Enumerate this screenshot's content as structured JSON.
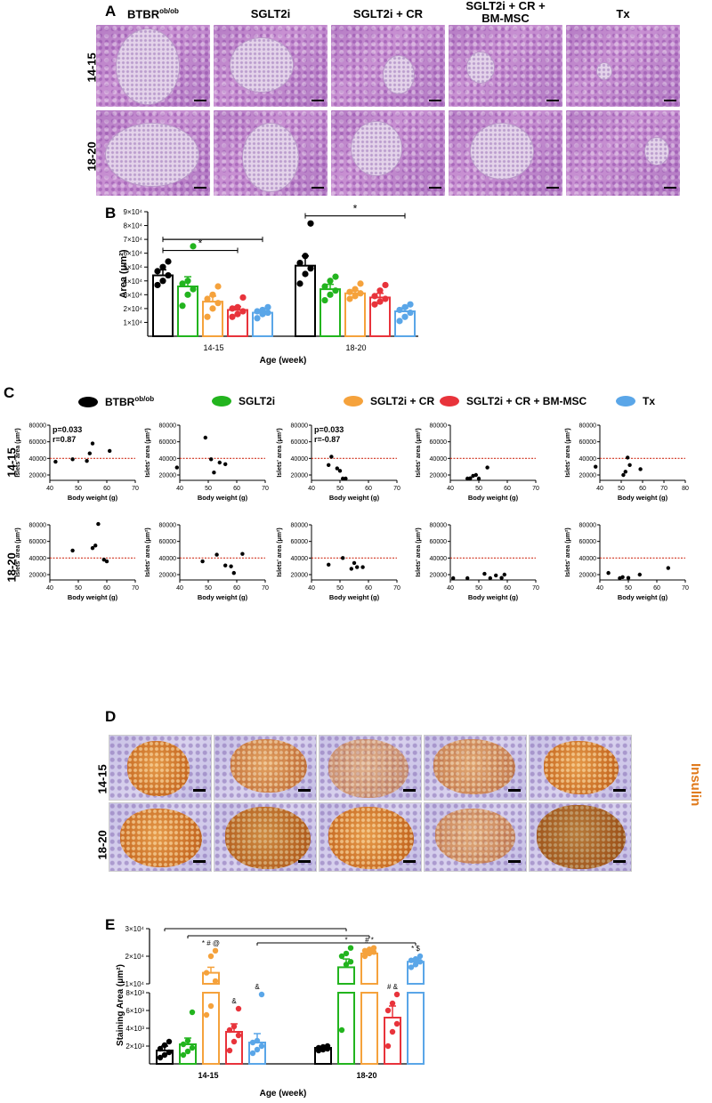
{
  "panels": {
    "a": "A",
    "b": "B",
    "c": "C",
    "d": "D",
    "e": "E"
  },
  "groups": [
    "BTBRob/ob",
    "SGLT2i",
    "SGLT2i + CR",
    "SGLT2i + CR + BM-MSC",
    "Tx"
  ],
  "group_titles": {
    "btbr_main": "BTBR",
    "btbr_sup": "ob/ob",
    "sglt2i": "SGLT2i",
    "sglt2i_cr": "SGLT2i + CR",
    "msc_line1": "SGLT2i + CR +",
    "msc_line2": "BM-MSC",
    "tx": "Tx"
  },
  "colors": {
    "BTBR": "#000000",
    "SGLT2i": "#22b41e",
    "SGLT2i_CR": "#f5a23c",
    "MSC": "#e8333b",
    "Tx": "#5aa6e8",
    "ref_line": "#d0321e",
    "insulin": "#e07a1c"
  },
  "rows": [
    "14-15",
    "18-20"
  ],
  "panel_d_label": "Insulin",
  "chart_data": [
    {
      "id": "B",
      "type": "bar",
      "categories": [
        "14-15",
        "18-20"
      ],
      "xlabel": "Age (week)",
      "ylabel": "Area (μm²)",
      "ylim": [
        0,
        90000
      ],
      "yticks": [
        "1×10⁴",
        "2×10⁴",
        "3×10⁴",
        "4×10⁴",
        "5×10⁴",
        "6×10⁴",
        "7×10⁴",
        "8×10⁴",
        "9×10⁴"
      ],
      "series": [
        {
          "name": "BTBRob/ob",
          "values": [
            44000,
            51000
          ],
          "sem": [
            4000,
            7000
          ],
          "points": [
            [
              37000,
              40000,
              44000,
              47000,
              50000,
              54000
            ],
            [
              38000,
              45000,
              49000,
              53000,
              58000,
              81500
            ]
          ]
        },
        {
          "name": "SGLT2i",
          "values": [
            36000,
            34000
          ],
          "sem": [
            7000,
            3500
          ],
          "points": [
            [
              22000,
              30000,
              34000,
              38000,
              40000,
              65000
            ],
            [
              26000,
              30000,
              33000,
              36000,
              40000,
              43000
            ]
          ]
        },
        {
          "name": "SGLT2i + CR",
          "values": [
            25000,
            31000
          ],
          "sem": [
            4000,
            2000
          ],
          "points": [
            [
              14000,
              20000,
              24000,
              27000,
              30000,
              36000
            ],
            [
              27000,
              29000,
              31000,
              32000,
              34000,
              38000
            ]
          ]
        },
        {
          "name": "SGLT2i + CR + BM-MSC",
          "values": [
            19000,
            28000
          ],
          "sem": [
            2500,
            3000
          ],
          "points": [
            [
              14000,
              16000,
              18000,
              20000,
              21000,
              28000
            ],
            [
              23000,
              25000,
              27000,
              29000,
              33000,
              37000
            ]
          ]
        },
        {
          "name": "Tx",
          "values": [
            17000,
            18000
          ],
          "sem": [
            1500,
            2500
          ],
          "points": [
            [
              13000,
              16000,
              17000,
              18000,
              19000,
              21000
            ],
            [
              11000,
              14000,
              17000,
              19000,
              21000,
              23000
            ]
          ]
        }
      ],
      "brackets": [
        {
          "label": "*",
          "from": [
            0,
            0
          ],
          "to": [
            0,
            3
          ],
          "y": 62000
        },
        {
          "label": "",
          "from": [
            0,
            0
          ],
          "to": [
            0,
            4
          ],
          "y": 70000
        },
        {
          "label": "*",
          "from": [
            1,
            0
          ],
          "to": [
            1,
            4
          ],
          "y": 87000
        }
      ]
    },
    {
      "id": "C",
      "type": "scatter",
      "xlabel": "Body weight (g)",
      "ylabel": "Islets' area (μm²)",
      "reference_y": 40000,
      "legend": [
        "BTBRob/ob",
        "SGLT2i",
        "SGLT2i + CR",
        "SGLT2i + CR + BM-MSC",
        "Tx"
      ],
      "panels": [
        {
          "row": "14-15",
          "group": "BTBRob/ob",
          "xlim": [
            40,
            70
          ],
          "xticks": [
            "40",
            "50",
            "60",
            "70"
          ],
          "ylim": [
            20000,
            80000
          ],
          "yticks": [
            "20000",
            "40000",
            "60000",
            "80000"
          ],
          "stats": [
            "p=0.033",
            "r=0.87"
          ],
          "points": [
            [
              42,
              36000
            ],
            [
              48,
              39000
            ],
            [
              53,
              37000
            ],
            [
              54,
              46000
            ],
            [
              55,
              58000
            ],
            [
              61,
              49000
            ]
          ]
        },
        {
          "row": "14-15",
          "group": "SGLT2i",
          "xlim": [
            40,
            70
          ],
          "xticks": [
            "40",
            "50",
            "60",
            "70"
          ],
          "ylim": [
            20000,
            80000
          ],
          "yticks": [
            "20000",
            "40000",
            "60000",
            "80000"
          ],
          "stats": [],
          "points": [
            [
              39,
              29000
            ],
            [
              49,
              65000
            ],
            [
              51,
              39000
            ],
            [
              52,
              23000
            ],
            [
              54,
              35000
            ],
            [
              56,
              33000
            ]
          ]
        },
        {
          "row": "14-15",
          "group": "SGLT2i + CR",
          "xlim": [
            40,
            70
          ],
          "xticks": [
            "40",
            "50",
            "60",
            "70"
          ],
          "ylim": [
            20000,
            80000
          ],
          "yticks": [
            "20000",
            "40000",
            "60000",
            "80000"
          ],
          "stats": [
            "p=0.033",
            "r=-0.87"
          ],
          "points": [
            [
              46,
              32000
            ],
            [
              47,
              42000
            ],
            [
              49,
              28000
            ],
            [
              50,
              25000
            ],
            [
              51,
              15000
            ],
            [
              52,
              15000
            ]
          ]
        },
        {
          "row": "14-15",
          "group": "SGLT2i + CR + BM-MSC",
          "xlim": [
            40,
            70
          ],
          "xticks": [
            "40",
            "50",
            "60",
            "70"
          ],
          "ylim": [
            20000,
            80000
          ],
          "yticks": [
            "20000",
            "40000",
            "60000",
            "80000"
          ],
          "stats": [],
          "points": [
            [
              46,
              13000
            ],
            [
              47,
              16000
            ],
            [
              48,
              19000
            ],
            [
              49,
              20000
            ],
            [
              50,
              14000
            ],
            [
              53,
              29000
            ]
          ]
        },
        {
          "row": "14-15",
          "group": "Tx",
          "xlim": [
            40,
            80
          ],
          "xticks": [
            "40",
            "50",
            "60",
            "70",
            "80"
          ],
          "ylim": [
            20000,
            80000
          ],
          "yticks": [
            "20000",
            "40000",
            "60000",
            "80000"
          ],
          "stats": [],
          "points": [
            [
              38,
              30000
            ],
            [
              51,
              20000
            ],
            [
              52,
              24000
            ],
            [
              53,
              41000
            ],
            [
              54,
              32000
            ],
            [
              59,
              27000
            ]
          ]
        },
        {
          "row": "18-20",
          "group": "BTBRob/ob",
          "xlim": [
            40,
            70
          ],
          "xticks": [
            "40",
            "50",
            "60",
            "70"
          ],
          "ylim": [
            20000,
            80000
          ],
          "yticks": [
            "20000",
            "40000",
            "60000",
            "80000"
          ],
          "stats": [],
          "points": [
            [
              48,
              49000
            ],
            [
              55,
              52000
            ],
            [
              56,
              55000
            ],
            [
              57,
              81000
            ],
            [
              59,
              38000
            ],
            [
              60,
              36000
            ]
          ]
        },
        {
          "row": "18-20",
          "group": "SGLT2i",
          "xlim": [
            40,
            70
          ],
          "xticks": [
            "40",
            "50",
            "60",
            "70"
          ],
          "ylim": [
            20000,
            80000
          ],
          "yticks": [
            "20000",
            "40000",
            "60000",
            "80000"
          ],
          "stats": [],
          "points": [
            [
              48,
              36000
            ],
            [
              53,
              44000
            ],
            [
              56,
              31000
            ],
            [
              58,
              30000
            ],
            [
              59,
              22000
            ],
            [
              62,
              45000
            ]
          ]
        },
        {
          "row": "18-20",
          "group": "SGLT2i + CR",
          "xlim": [
            40,
            70
          ],
          "xticks": [
            "40",
            "50",
            "60",
            "70"
          ],
          "ylim": [
            20000,
            80000
          ],
          "yticks": [
            "20000",
            "40000",
            "60000",
            "80000"
          ],
          "stats": [],
          "points": [
            [
              46,
              32000
            ],
            [
              51,
              40000
            ],
            [
              54,
              27000
            ],
            [
              55,
              34000
            ],
            [
              56,
              29000
            ],
            [
              58,
              29000
            ]
          ]
        },
        {
          "row": "18-20",
          "group": "SGLT2i + CR + BM-MSC",
          "xlim": [
            40,
            70
          ],
          "xticks": [
            "40",
            "50",
            "60",
            "70"
          ],
          "ylim": [
            20000,
            80000
          ],
          "yticks": [
            "20000",
            "40000",
            "60000",
            "80000"
          ],
          "stats": [],
          "points": [
            [
              41,
              15000
            ],
            [
              46,
              14000
            ],
            [
              52,
              21000
            ],
            [
              54,
              14000
            ],
            [
              56,
              19000
            ],
            [
              58,
              16000
            ],
            [
              59,
              20000
            ]
          ]
        },
        {
          "row": "18-20",
          "group": "Tx",
          "xlim": [
            40,
            70
          ],
          "xticks": [
            "40",
            "50",
            "60",
            "70"
          ],
          "ylim": [
            20000,
            80000
          ],
          "yticks": [
            "20000",
            "40000",
            "60000",
            "80000"
          ],
          "stats": [],
          "points": [
            [
              43,
              22000
            ],
            [
              47,
              12000
            ],
            [
              48,
              17000
            ],
            [
              50,
              16000
            ],
            [
              54,
              20000
            ],
            [
              64,
              28000
            ]
          ]
        }
      ]
    },
    {
      "id": "E",
      "type": "bar",
      "categories": [
        "14-15",
        "18-20"
      ],
      "xlabel": "Age (week)",
      "ylabel": "Staining Area (μm²)",
      "broken_axis": {
        "lower": [
          0,
          8000
        ],
        "upper": [
          10000,
          30000
        ]
      },
      "yticks": [
        "2×10³",
        "4×10³",
        "6×10³",
        "8×10³",
        "1×10⁴",
        "2×10⁴",
        "3×10⁴"
      ],
      "series": [
        {
          "name": "BTBRob/ob",
          "values": [
            1500,
            1800
          ],
          "sem": [
            500,
            150
          ],
          "points": [
            [
              700,
              1000,
              1300,
              1700,
              2100,
              2500
            ],
            [
              1500,
              1600,
              1700,
              1800,
              1900,
              2000
            ]
          ],
          "annot": [
            "",
            ""
          ]
        },
        {
          "name": "SGLT2i",
          "values": [
            2200,
            16000
          ],
          "sem": [
            700,
            3000
          ],
          "points": [
            [
              1000,
              1400,
              1800,
              2200,
              2600,
              5800
            ],
            [
              3800,
              17000,
              18000,
              20000,
              21000,
              23000
            ]
          ],
          "annot": [
            "",
            "*"
          ]
        },
        {
          "name": "SGLT2i + CR",
          "values": [
            14000,
            21000
          ],
          "sem": [
            2000,
            700
          ],
          "points": [
            [
              5500,
              6500,
              11000,
              14000,
              20000,
              22000
            ],
            [
              20000,
              21000,
              21500,
              22000,
              22500,
              23000
            ]
          ],
          "annot": [
            "* # @",
            "# *"
          ]
        },
        {
          "name": "SGLT2i + CR + BM-MSC",
          "values": [
            3600,
            5200
          ],
          "sem": [
            900,
            1300
          ],
          "points": [
            [
              1500,
              2500,
              3200,
              3800,
              4200,
              6200
            ],
            [
              2000,
              3600,
              4500,
              6000,
              6800,
              7800
            ]
          ],
          "annot": [
            "&",
            "# &"
          ]
        },
        {
          "name": "Tx",
          "values": [
            2400,
            18000
          ],
          "sem": [
            1000,
            1000
          ],
          "points": [
            [
              1200,
              1600,
              2000,
              2400,
              2600,
              7800
            ],
            [
              16000,
              17000,
              18000,
              18500,
              19000,
              20000
            ]
          ],
          "annot": [
            "&",
            "* $"
          ]
        }
      ]
    }
  ]
}
